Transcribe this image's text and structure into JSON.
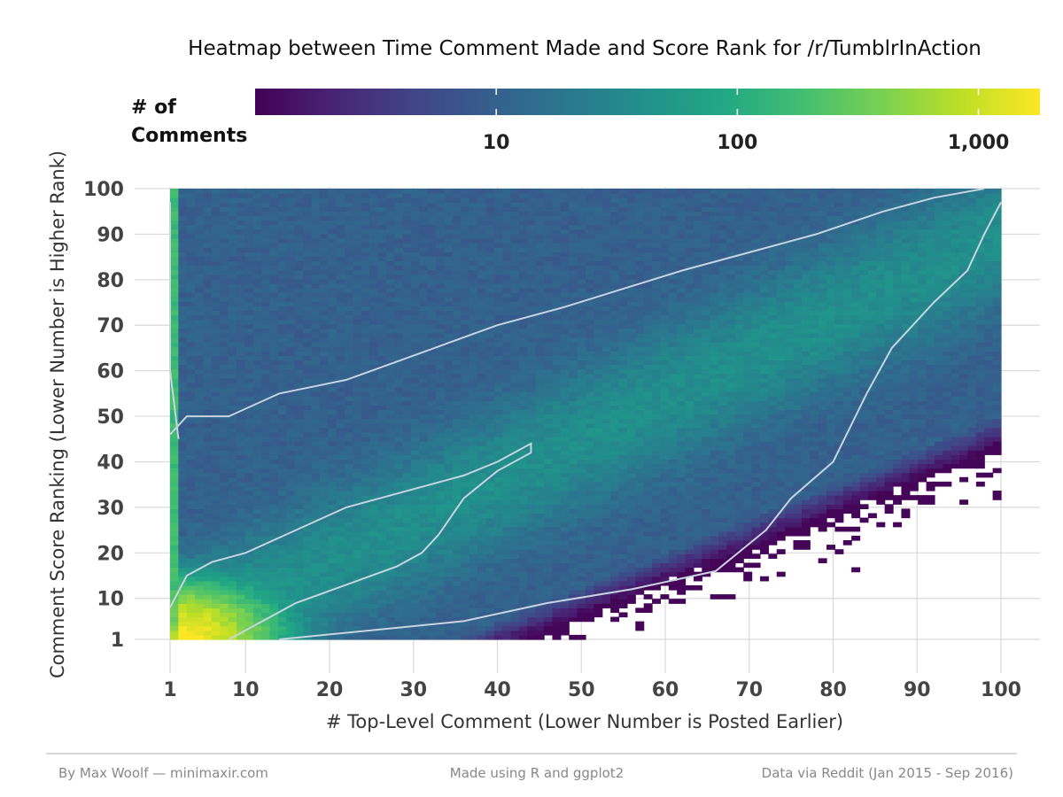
{
  "chart_data": {
    "type": "heatmap",
    "title": "Heatmap between Time Comment Made and Score Rank for /r/TumblrInAction",
    "xlabel": "# Top-Level Comment (Lower Number is Posted Earlier)",
    "ylabel": "Comment Score Ranking (Lower Number is Higher Rank)",
    "x_ticks": [
      "1",
      "10",
      "20",
      "30",
      "40",
      "50",
      "60",
      "70",
      "80",
      "90",
      "100"
    ],
    "y_ticks": [
      "1",
      "10",
      "20",
      "30",
      "40",
      "50",
      "60",
      "70",
      "80",
      "90",
      "100"
    ],
    "xlim": [
      1,
      100
    ],
    "ylim": [
      1,
      100
    ],
    "x_tick_values": [
      1,
      10,
      20,
      30,
      40,
      50,
      60,
      70,
      80,
      90,
      100
    ],
    "y_tick_values": [
      1,
      10,
      20,
      30,
      40,
      50,
      60,
      70,
      80,
      90,
      100
    ],
    "grid": true,
    "legend": {
      "title_line1": "# of",
      "title_line2": "Comments",
      "scale": "log",
      "ticks": [
        "10",
        "100",
        "1,000"
      ],
      "tick_values": [
        10,
        100,
        1000
      ],
      "range": [
        1,
        1800
      ],
      "colormap": "viridis",
      "placement": "top"
    },
    "contour_color": "#c8d4e0",
    "contour_levels": [
      20,
      100
    ]
  },
  "footer": {
    "left": "By Max Woolf — minimaxir.com",
    "center": "Made using R and ggplot2",
    "right": "Data via Reddit (Jan 2015 - Sep 2016)"
  }
}
